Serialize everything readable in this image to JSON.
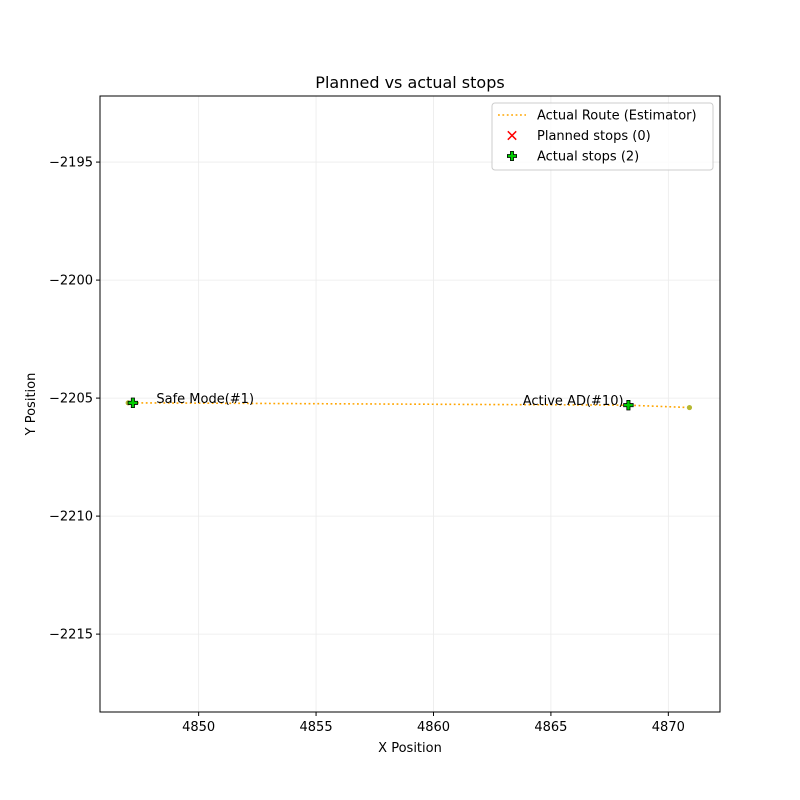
{
  "chart_data": {
    "type": "scatter",
    "title": "Planned vs actual stops",
    "xlabel": "X Position",
    "ylabel": "Y Position",
    "xlim": [
      4845.8,
      4872.2
    ],
    "ylim": [
      -2218.3,
      -2192.2
    ],
    "x_ticks": [
      4850,
      4855,
      4860,
      4865,
      4870
    ],
    "y_ticks": [
      -2195,
      -2200,
      -2205,
      -2210,
      -2215
    ],
    "x_tick_labels": [
      "4850",
      "4855",
      "4860",
      "4865",
      "4870"
    ],
    "y_tick_labels": [
      "−2195",
      "−2200",
      "−2205",
      "−2210",
      "−2215"
    ],
    "grid": true,
    "legend_position": "top-right",
    "series": [
      {
        "name": "Actual Route (Estimator)",
        "kind": "line",
        "style": "dotted",
        "color": "#ffa500",
        "x": [
          4847.0,
          4868.3,
          4870.9
        ],
        "y": [
          -2205.2,
          -2205.3,
          -2205.4
        ]
      },
      {
        "name": "Planned stops (0)",
        "kind": "marker",
        "marker": "x",
        "color": "#ff0000",
        "x": [],
        "y": []
      },
      {
        "name": "Actual stops (2)",
        "kind": "marker",
        "marker": "plus",
        "color": "#00cc00",
        "x": [
          4847.2,
          4868.3
        ],
        "y": [
          -2205.2,
          -2205.3
        ]
      }
    ],
    "extra_points": {
      "color": "#b5b830",
      "x": [
        4847.0,
        4870.9
      ],
      "y": [
        -2205.2,
        -2205.4
      ]
    },
    "annotations": [
      {
        "text": "Safe Mode(#1)",
        "x": 4848.2,
        "y": -2205.2
      },
      {
        "text": "Active AD(#10)",
        "x": 4863.8,
        "y": -2205.3
      }
    ]
  }
}
